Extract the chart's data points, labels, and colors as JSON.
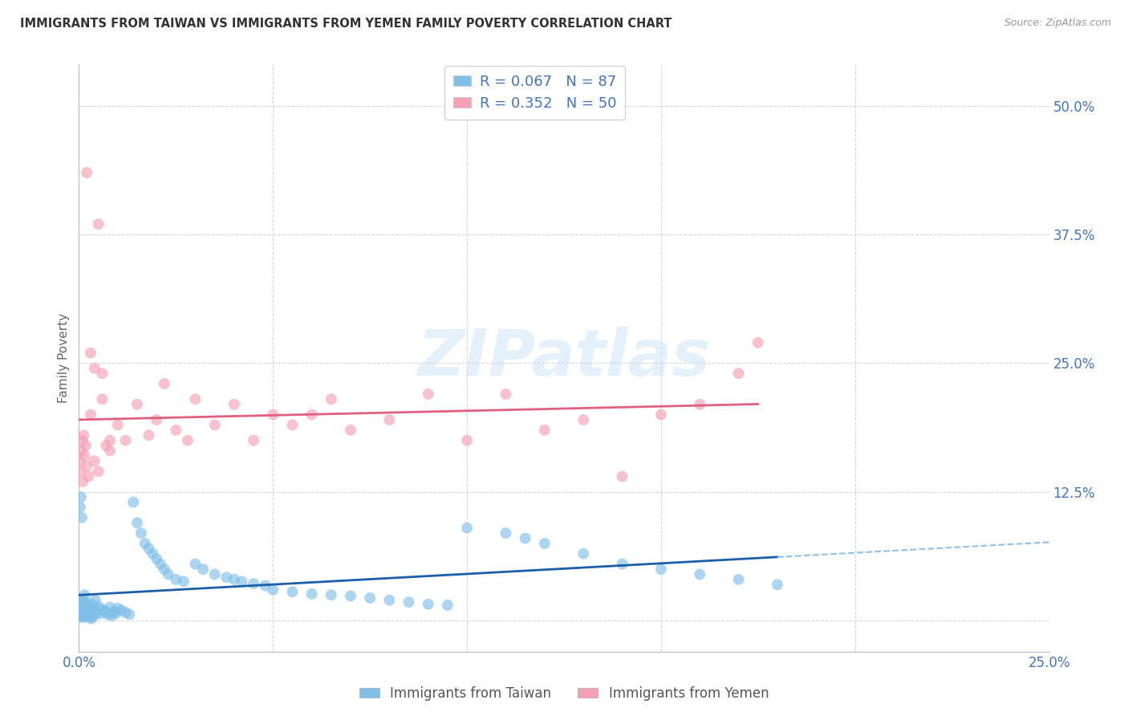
{
  "title": "IMMIGRANTS FROM TAIWAN VS IMMIGRANTS FROM YEMEN FAMILY POVERTY CORRELATION CHART",
  "source": "Source: ZipAtlas.com",
  "xlabel_taiwan": "Immigrants from Taiwan",
  "xlabel_yemen": "Immigrants from Yemen",
  "ylabel": "Family Poverty",
  "watermark": "ZIPatlas",
  "taiwan_R": 0.067,
  "taiwan_N": 87,
  "yemen_R": 0.352,
  "yemen_N": 50,
  "xlim": [
    0.0,
    0.25
  ],
  "ylim": [
    -0.03,
    0.54
  ],
  "yticks": [
    0.0,
    0.125,
    0.25,
    0.375,
    0.5
  ],
  "ytick_labels": [
    "",
    "12.5%",
    "25.0%",
    "37.5%",
    "50.0%"
  ],
  "xticks": [
    0.0,
    0.05,
    0.1,
    0.15,
    0.2,
    0.25
  ],
  "xtick_labels": [
    "0.0%",
    "",
    "",
    "",
    "",
    "25.0%"
  ],
  "taiwan_color": "#7fbfe8",
  "yemen_color": "#f5a0b5",
  "taiwan_line_color": "#1a5fa8",
  "yemen_line_color": "#e06080",
  "dashed_line_color": "#90c0e8",
  "grid_color": "#d8d8d8",
  "axis_color": "#bbbbbb",
  "taiwan_scatter_x": [
    0.0002,
    0.0003,
    0.0004,
    0.0005,
    0.0006,
    0.0007,
    0.0008,
    0.0009,
    0.001,
    0.0012,
    0.0014,
    0.0015,
    0.0016,
    0.0018,
    0.002,
    0.0022,
    0.0025,
    0.0028,
    0.003,
    0.0032,
    0.0034,
    0.0035,
    0.0038,
    0.004,
    0.0042,
    0.0045,
    0.005,
    0.0055,
    0.006,
    0.0065,
    0.007,
    0.0075,
    0.008,
    0.0085,
    0.009,
    0.0095,
    0.01,
    0.011,
    0.012,
    0.013,
    0.014,
    0.015,
    0.016,
    0.017,
    0.018,
    0.019,
    0.02,
    0.021,
    0.022,
    0.023,
    0.025,
    0.027,
    0.03,
    0.032,
    0.035,
    0.038,
    0.04,
    0.042,
    0.045,
    0.048,
    0.05,
    0.055,
    0.06,
    0.065,
    0.07,
    0.075,
    0.08,
    0.085,
    0.09,
    0.095,
    0.1,
    0.11,
    0.115,
    0.12,
    0.13,
    0.14,
    0.15,
    0.16,
    0.17,
    0.18,
    0.0003,
    0.0005,
    0.0007,
    0.001,
    0.0015,
    0.002,
    0.003
  ],
  "taiwan_scatter_y": [
    0.01,
    0.02,
    0.005,
    0.015,
    0.008,
    0.012,
    0.003,
    0.018,
    0.006,
    0.01,
    0.025,
    0.004,
    0.02,
    0.009,
    0.007,
    0.015,
    0.011,
    0.013,
    0.005,
    0.008,
    0.016,
    0.003,
    0.012,
    0.006,
    0.02,
    0.009,
    0.014,
    0.007,
    0.011,
    0.01,
    0.008,
    0.006,
    0.013,
    0.005,
    0.009,
    0.007,
    0.012,
    0.01,
    0.008,
    0.006,
    0.115,
    0.095,
    0.085,
    0.075,
    0.07,
    0.065,
    0.06,
    0.055,
    0.05,
    0.045,
    0.04,
    0.038,
    0.055,
    0.05,
    0.045,
    0.042,
    0.04,
    0.038,
    0.036,
    0.034,
    0.03,
    0.028,
    0.026,
    0.025,
    0.024,
    0.022,
    0.02,
    0.018,
    0.016,
    0.015,
    0.09,
    0.085,
    0.08,
    0.075,
    0.065,
    0.055,
    0.05,
    0.045,
    0.04,
    0.035,
    0.11,
    0.12,
    0.1,
    0.008,
    0.006,
    0.004,
    0.002
  ],
  "yemen_scatter_x": [
    0.0002,
    0.0004,
    0.0006,
    0.0008,
    0.001,
    0.0012,
    0.0015,
    0.0018,
    0.002,
    0.0025,
    0.003,
    0.004,
    0.005,
    0.006,
    0.007,
    0.008,
    0.01,
    0.012,
    0.015,
    0.018,
    0.02,
    0.022,
    0.025,
    0.028,
    0.03,
    0.035,
    0.04,
    0.045,
    0.05,
    0.055,
    0.06,
    0.065,
    0.07,
    0.08,
    0.09,
    0.1,
    0.11,
    0.12,
    0.13,
    0.14,
    0.15,
    0.16,
    0.17,
    0.175,
    0.003,
    0.004,
    0.006,
    0.008,
    0.002,
    0.005
  ],
  "yemen_scatter_y": [
    0.155,
    0.145,
    0.165,
    0.175,
    0.135,
    0.18,
    0.16,
    0.17,
    0.15,
    0.14,
    0.2,
    0.155,
    0.145,
    0.215,
    0.17,
    0.165,
    0.19,
    0.175,
    0.21,
    0.18,
    0.195,
    0.23,
    0.185,
    0.175,
    0.215,
    0.19,
    0.21,
    0.175,
    0.2,
    0.19,
    0.2,
    0.215,
    0.185,
    0.195,
    0.22,
    0.175,
    0.22,
    0.185,
    0.195,
    0.14,
    0.2,
    0.21,
    0.24,
    0.27,
    0.26,
    0.245,
    0.24,
    0.175,
    0.435,
    0.385
  ]
}
